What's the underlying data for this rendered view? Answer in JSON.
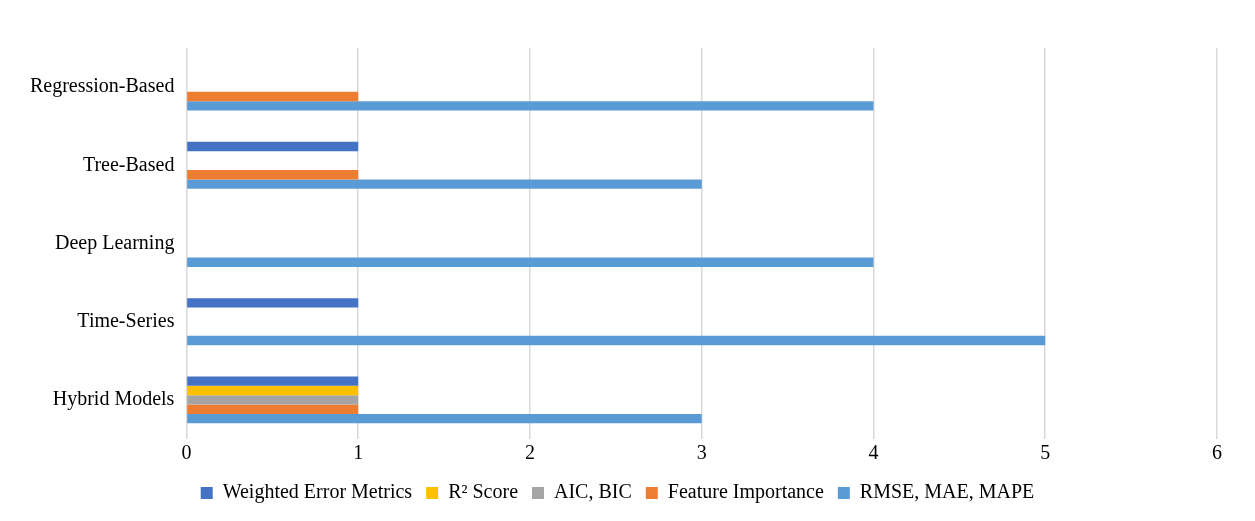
{
  "chart_data": {
    "type": "bar",
    "orientation": "horizontal",
    "categories": [
      "Regression-Based",
      "Tree-Based",
      "Deep Learning",
      "Time-Series",
      "Hybrid Models"
    ],
    "series": [
      {
        "name": "Weighted Error Metrics",
        "color": "#4472c4",
        "values": [
          null,
          1,
          null,
          1,
          1
        ]
      },
      {
        "name": "R² Score",
        "color": "#ffc000",
        "values": [
          null,
          null,
          null,
          null,
          1
        ]
      },
      {
        "name": "AIC, BIC",
        "color": "#a5a5a5",
        "values": [
          null,
          null,
          null,
          null,
          1
        ]
      },
      {
        "name": "Feature Importance",
        "color": "#ed7d31",
        "values": [
          1,
          1,
          null,
          null,
          1
        ]
      },
      {
        "name": "RMSE, MAE, MAPE",
        "color": "#5b9bd5",
        "values": [
          4,
          3,
          4,
          5,
          3
        ]
      }
    ],
    "xlim": [
      0,
      6
    ],
    "xticks": [
      0,
      1,
      2,
      3,
      4,
      5,
      6
    ],
    "grid": "x",
    "legend": "bottom"
  }
}
